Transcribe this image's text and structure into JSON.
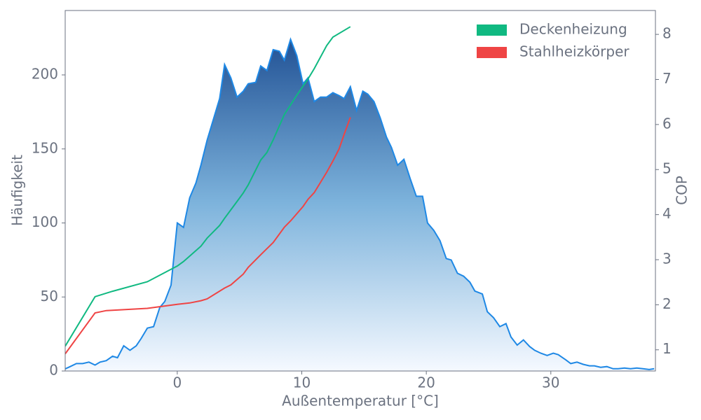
{
  "chart_data": {
    "type": "area",
    "x_label": "Außentemperatur [°C]",
    "y_label": "Häufigkeit",
    "y2_label": "COP",
    "xlim": [
      -9,
      38.4
    ],
    "ylim": [
      0,
      243.5
    ],
    "y2lim": [
      0.53,
      8.53
    ],
    "xticks": [
      0,
      10,
      20,
      30
    ],
    "yticks": [
      0,
      50,
      100,
      150,
      200
    ],
    "y2ticks": [
      1,
      2,
      3,
      4,
      5,
      6,
      7,
      8
    ],
    "legend": "upper right",
    "area": {
      "color": "#1e88e5",
      "x": [
        -9.0,
        -8.6,
        -8.1,
        -7.6,
        -7.1,
        -6.6,
        -6.2,
        -5.7,
        -5.2,
        -4.8,
        -4.3,
        -3.8,
        -3.3,
        -2.9,
        -2.4,
        -1.9,
        -1.4,
        -1.0,
        -0.5,
        0.0,
        0.5,
        1.0,
        1.5,
        1.9,
        2.4,
        2.9,
        3.4,
        3.8,
        4.3,
        4.8,
        5.3,
        5.7,
        6.3,
        6.7,
        7.2,
        7.7,
        8.2,
        8.6,
        9.1,
        9.6,
        10.1,
        10.5,
        11.0,
        11.5,
        12.0,
        12.5,
        13.0,
        13.4,
        13.9,
        14.4,
        14.9,
        15.3,
        15.8,
        16.3,
        16.8,
        17.2,
        17.7,
        18.2,
        18.7,
        19.2,
        19.7,
        20.1,
        20.6,
        21.1,
        21.6,
        22.0,
        22.5,
        23.0,
        23.5,
        23.9,
        24.5,
        24.9,
        25.4,
        25.9,
        26.4,
        26.8,
        27.3,
        27.8,
        28.3,
        28.7,
        29.2,
        29.7,
        30.2,
        30.6,
        31.2,
        31.6,
        32.1,
        32.6,
        33.1,
        33.5,
        34.0,
        34.5,
        35.0,
        35.4,
        35.9,
        36.4,
        36.9,
        37.4,
        37.9,
        38.3
      ],
      "values": [
        1.4,
        3,
        5,
        5,
        6,
        4,
        6,
        7,
        10,
        9,
        17,
        14,
        17,
        22,
        29,
        30,
        43,
        47,
        58,
        100,
        97,
        117,
        127,
        139,
        156,
        170,
        184,
        207,
        198,
        185,
        189,
        194,
        195,
        206,
        203,
        217,
        216,
        210,
        224,
        213,
        194,
        198,
        182,
        185,
        185,
        188,
        186,
        184,
        192,
        176,
        189,
        187,
        182,
        171,
        158,
        151,
        139,
        143,
        130,
        118,
        118,
        100,
        95,
        88,
        76,
        75,
        66,
        64,
        60,
        54,
        52,
        40,
        36,
        30,
        32,
        23,
        17.5,
        21,
        16.5,
        14,
        12,
        10.5,
        12,
        11,
        7.5,
        5,
        6,
        4.5,
        3.5,
        3.5,
        2.5,
        3,
        1.5,
        1.5,
        2,
        1.5,
        2,
        1.5,
        1,
        1.5
      ]
    },
    "series": [
      {
        "name": "Deckenheizung",
        "color": "#10b981",
        "axis": "y2",
        "x": [
          -9.0,
          -6.6,
          -5.2,
          -2.4,
          0,
          0.5,
          1.9,
          2.4,
          3.4,
          3.8,
          4.8,
          5.3,
          5.7,
          6.7,
          7.2,
          7.7,
          8.2,
          8.6,
          9.6,
          10.5,
          11.0,
          12.0,
          12.5,
          13.9
        ],
        "values": [
          1.08,
          2.18,
          2.3,
          2.51,
          2.86,
          2.96,
          3.3,
          3.48,
          3.76,
          3.92,
          4.29,
          4.48,
          4.66,
          5.21,
          5.38,
          5.66,
          5.97,
          6.22,
          6.65,
          7.01,
          7.24,
          7.75,
          7.94,
          8.17
        ]
      },
      {
        "name": "Stahlheizkörper",
        "color": "#ef4444",
        "axis": "y2",
        "x": [
          -9.0,
          -6.6,
          -5.7,
          -2.4,
          0,
          1.0,
          1.9,
          2.4,
          3.8,
          4.3,
          5.3,
          5.7,
          6.7,
          7.7,
          8.6,
          9.1,
          10.1,
          10.5,
          11.0,
          12.0,
          12.5,
          13.0,
          13.4,
          13.9
        ],
        "values": [
          0.91,
          1.82,
          1.87,
          1.92,
          2.01,
          2.04,
          2.09,
          2.13,
          2.37,
          2.44,
          2.68,
          2.83,
          3.11,
          3.38,
          3.72,
          3.86,
          4.18,
          4.34,
          4.49,
          4.94,
          5.19,
          5.46,
          5.78,
          6.16
        ]
      }
    ]
  }
}
